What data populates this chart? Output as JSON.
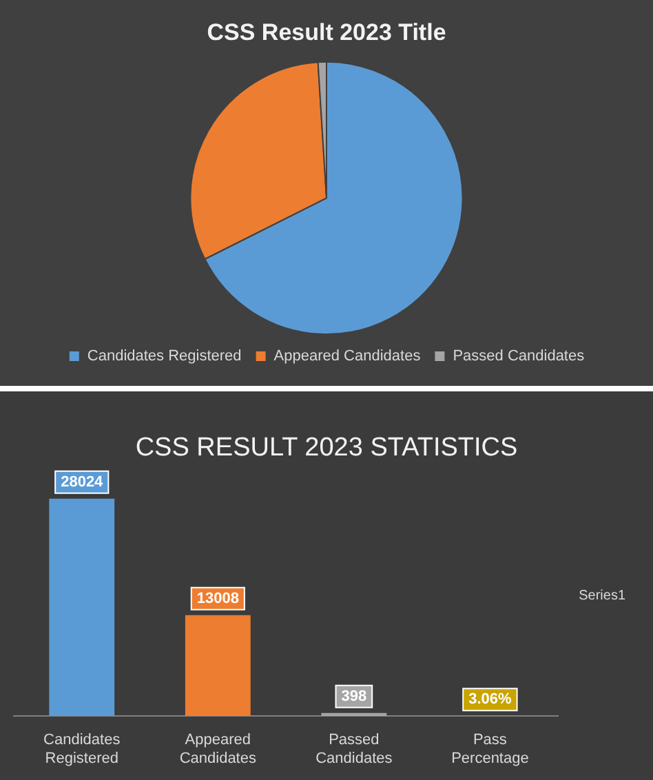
{
  "chart_data": [
    {
      "type": "pie",
      "title": "CSS Result 2023 Title",
      "categories": [
        "Candidates Registered",
        "Appeared Candidates",
        "Passed Candidates"
      ],
      "values": [
        67.6,
        31.4,
        1.0
      ],
      "colors": [
        "#5b9bd5",
        "#ed7d31",
        "#a5a5a5"
      ],
      "legend": "bottom"
    },
    {
      "type": "bar",
      "title": "CSS RESULT 2023 STATISTICS",
      "categories": [
        "Candidates Registered",
        "Appeared Candidates",
        "Passed Candidates",
        "Pass Percentage"
      ],
      "series": [
        {
          "name": "Series1",
          "values": [
            28024,
            13008,
            398,
            3.06
          ],
          "colors": [
            "#5b9bd5",
            "#ed7d31",
            "#a5a5a5",
            "#c9a400"
          ],
          "value_labels": [
            "28024",
            "13008",
            "398",
            "3.06%"
          ]
        }
      ],
      "legend": "right"
    }
  ]
}
